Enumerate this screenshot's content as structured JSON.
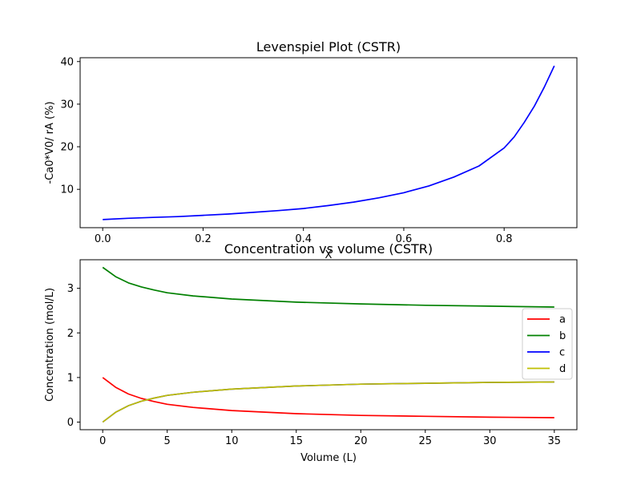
{
  "chart_data": [
    {
      "type": "line",
      "title": "Levenspiel Plot (CSTR)",
      "xlabel": "X",
      "ylabel": "-Ca0*V0/ rA (%)",
      "xlim": [
        -0.045,
        0.945
      ],
      "ylim": [
        1.0,
        40.9
      ],
      "xticks": [
        0.0,
        0.2,
        0.4,
        0.6,
        0.8
      ],
      "xtick_labels": [
        "0.0",
        "0.2",
        "0.4",
        "0.6",
        "0.8"
      ],
      "yticks": [
        10,
        20,
        30,
        40
      ],
      "ytick_labels": [
        "10",
        "20",
        "30",
        "40"
      ],
      "grid": false,
      "series": [
        {
          "color": "#0000ff",
          "x": [
            0.0,
            0.05,
            0.1,
            0.15,
            0.2,
            0.25,
            0.3,
            0.35,
            0.4,
            0.45,
            0.5,
            0.55,
            0.6,
            0.65,
            0.7,
            0.75,
            0.8,
            0.82,
            0.84,
            0.86,
            0.88,
            0.9
          ],
          "y": [
            2.9,
            3.2,
            3.4,
            3.6,
            3.9,
            4.2,
            4.6,
            5.0,
            5.5,
            6.2,
            7.0,
            8.0,
            9.2,
            10.8,
            12.9,
            15.5,
            19.7,
            22.3,
            25.7,
            29.5,
            34.0,
            39.0
          ]
        }
      ]
    },
    {
      "type": "line",
      "title": "Concentration vs volume (CSTR)",
      "xlabel": "Volume (L)",
      "ylabel": "Concentration (mol/L)",
      "xlim": [
        -1.75,
        36.75
      ],
      "ylim": [
        -0.17,
        3.64
      ],
      "xticks": [
        0,
        5,
        10,
        15,
        20,
        25,
        30,
        35
      ],
      "xtick_labels": [
        "0",
        "5",
        "10",
        "15",
        "20",
        "25",
        "30",
        "35"
      ],
      "yticks": [
        0,
        1,
        2,
        3
      ],
      "ytick_labels": [
        "0",
        "1",
        "2",
        "3"
      ],
      "grid": false,
      "legend": "center-right",
      "series": [
        {
          "name": "a",
          "color": "#ff0000",
          "x": [
            0,
            1,
            2,
            3,
            4,
            5,
            7,
            10,
            15,
            20,
            25,
            30,
            35
          ],
          "y": [
            1.0,
            0.78,
            0.63,
            0.53,
            0.46,
            0.4,
            0.33,
            0.26,
            0.19,
            0.15,
            0.13,
            0.11,
            0.1
          ]
        },
        {
          "name": "b",
          "color": "#008000",
          "x": [
            0,
            1,
            2,
            3,
            4,
            5,
            7,
            10,
            15,
            20,
            25,
            30,
            35
          ],
          "y": [
            3.47,
            3.26,
            3.12,
            3.03,
            2.96,
            2.9,
            2.83,
            2.76,
            2.69,
            2.65,
            2.62,
            2.6,
            2.58
          ]
        },
        {
          "name": "c",
          "color": "#0000ff",
          "x": [
            0,
            1,
            2,
            3,
            4,
            5,
            7,
            10,
            15,
            20,
            25,
            30,
            35
          ],
          "y": [
            0.0,
            0.22,
            0.37,
            0.47,
            0.54,
            0.6,
            0.67,
            0.74,
            0.81,
            0.85,
            0.87,
            0.89,
            0.9
          ]
        },
        {
          "name": "d",
          "color": "#bfbf00",
          "x": [
            0,
            1,
            2,
            3,
            4,
            5,
            7,
            10,
            15,
            20,
            25,
            30,
            35
          ],
          "y": [
            0.0,
            0.22,
            0.37,
            0.47,
            0.54,
            0.6,
            0.67,
            0.74,
            0.81,
            0.85,
            0.87,
            0.89,
            0.9
          ]
        }
      ]
    }
  ]
}
